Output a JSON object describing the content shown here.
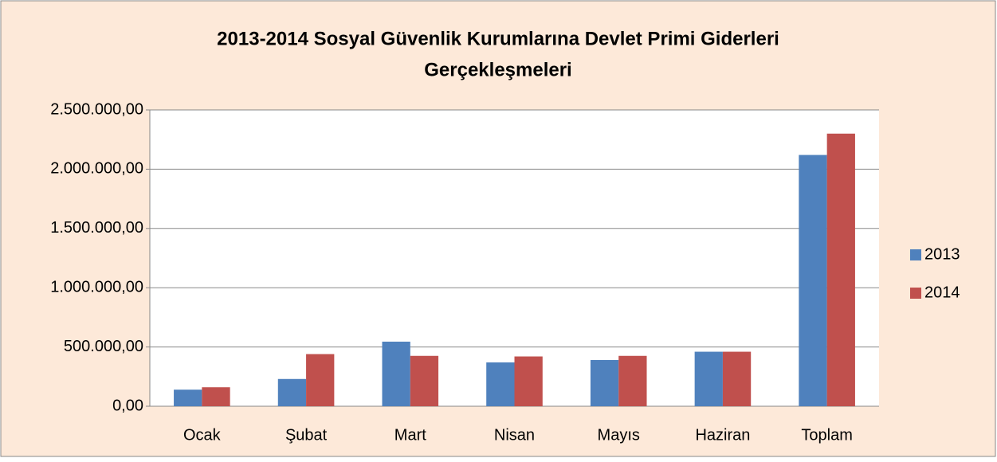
{
  "chart_data": {
    "type": "bar",
    "title": [
      "2013-2014 Sosyal Güvenlik Kurumlarına Devlet Primi Giderleri",
      "Gerçekleşmeleri"
    ],
    "categories": [
      "Ocak",
      "Şubat",
      "Mart",
      "Nisan",
      "Mayıs",
      "Haziran",
      "Toplam"
    ],
    "series": [
      {
        "name": "2013",
        "color": "#4f81bd",
        "values": [
          140000,
          230000,
          545000,
          370000,
          390000,
          460000,
          2120000
        ]
      },
      {
        "name": "2014",
        "color": "#c0504d",
        "values": [
          160000,
          440000,
          425000,
          420000,
          425000,
          460000,
          2300000
        ]
      }
    ],
    "ylim": [
      0,
      2500000
    ],
    "yticks": [
      {
        "value": 0,
        "label": "0,00"
      },
      {
        "value": 500000,
        "label": "500.000,00"
      },
      {
        "value": 1000000,
        "label": "1.000.000,00"
      },
      {
        "value": 1500000,
        "label": "1.500.000,00"
      },
      {
        "value": 2000000,
        "label": "2.000.000,00"
      },
      {
        "value": 2500000,
        "label": "2.500.000,00"
      }
    ],
    "grid": true,
    "legend": "right"
  }
}
